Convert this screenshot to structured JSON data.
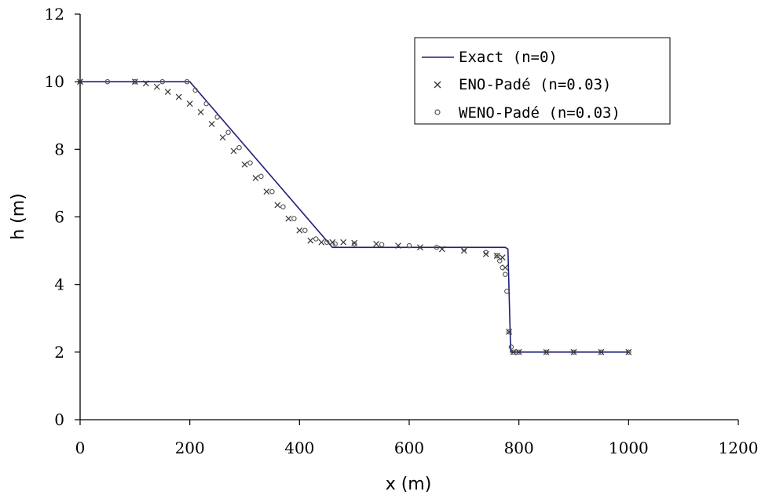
{
  "chart_data": {
    "type": "line",
    "title": "",
    "xlabel": "x (m)",
    "ylabel": "h (m)",
    "xlim": [
      0,
      1200
    ],
    "ylim": [
      0,
      12
    ],
    "xticks": [
      "0",
      "200",
      "400",
      "600",
      "800",
      "1000",
      "1200"
    ],
    "yticks": [
      "0",
      "2",
      "4",
      "6",
      "8",
      "10",
      "12"
    ],
    "grid": false,
    "legend_position": "top-right",
    "series": [
      {
        "name": "Exact (n=0)",
        "marker": "line",
        "color": "#1f1f7a",
        "x": [
          0,
          200,
          460,
          775,
          780,
          785,
          1000
        ],
        "y": [
          10,
          10,
          5.1,
          5.1,
          5.05,
          2.0,
          2.0
        ]
      },
      {
        "name": "ENO-Padé (n=0.03)",
        "marker": "x",
        "color": "#333333",
        "x": [
          0,
          100,
          120,
          140,
          160,
          180,
          200,
          220,
          240,
          260,
          280,
          300,
          320,
          340,
          360,
          380,
          400,
          420,
          440,
          460,
          480,
          500,
          540,
          580,
          620,
          660,
          700,
          740,
          760,
          770,
          775,
          782,
          790,
          800,
          850,
          900,
          950,
          1000
        ],
        "y": [
          10,
          10,
          9.95,
          9.85,
          9.7,
          9.55,
          9.35,
          9.1,
          8.75,
          8.35,
          7.95,
          7.55,
          7.15,
          6.75,
          6.35,
          5.95,
          5.6,
          5.3,
          5.25,
          5.25,
          5.25,
          5.23,
          5.2,
          5.15,
          5.1,
          5.05,
          5.0,
          4.9,
          4.85,
          4.8,
          4.5,
          2.6,
          2.0,
          2.0,
          2.0,
          2.0,
          2.0,
          2.0
        ]
      },
      {
        "name": "WENO-Padé (n=0.03)",
        "marker": "o",
        "color": "#555555",
        "x": [
          0,
          50,
          100,
          150,
          195,
          210,
          230,
          250,
          270,
          290,
          310,
          330,
          350,
          370,
          390,
          410,
          430,
          450,
          465,
          500,
          550,
          600,
          650,
          700,
          740,
          760,
          765,
          770,
          775,
          778,
          782,
          786,
          790,
          800,
          850,
          900,
          950,
          1000
        ],
        "y": [
          10,
          10,
          10,
          10,
          10,
          9.75,
          9.35,
          8.95,
          8.5,
          8.05,
          7.6,
          7.2,
          6.75,
          6.3,
          5.95,
          5.6,
          5.35,
          5.25,
          5.2,
          5.2,
          5.18,
          5.15,
          5.1,
          5.05,
          4.95,
          4.85,
          4.7,
          4.5,
          4.3,
          3.8,
          2.6,
          2.15,
          2.0,
          2.0,
          2.0,
          2.0,
          2.0,
          2.0
        ]
      }
    ]
  }
}
